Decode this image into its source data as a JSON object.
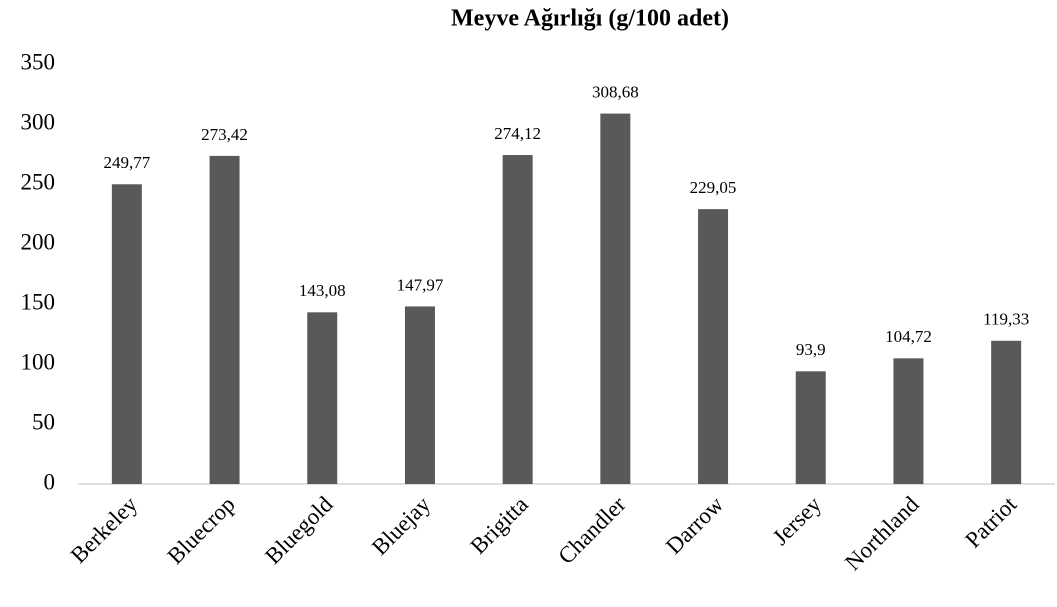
{
  "chart_data": {
    "type": "bar",
    "title": "Meyve Ağırlığı (g/100 adet)",
    "categories": [
      "Berkeley",
      "Bluecrop",
      "Bluegold",
      "Bluejay",
      "Brigitta",
      "Chandler",
      "Darrow",
      "Jersey",
      "Northland",
      "Patriot"
    ],
    "values": [
      249.77,
      273.42,
      143.08,
      147.97,
      274.12,
      308.68,
      229.05,
      93.9,
      104.72,
      119.33
    ],
    "value_labels": [
      "249,77",
      "273,42",
      "143,08",
      "147,97",
      "274,12",
      "308,68",
      "229,05",
      "93,9",
      "104,72",
      "119,33"
    ],
    "color": "#595959",
    "ylim": [
      0,
      350
    ],
    "yticks": [
      0,
      50,
      100,
      150,
      200,
      250,
      300,
      350
    ],
    "grid": false
  }
}
